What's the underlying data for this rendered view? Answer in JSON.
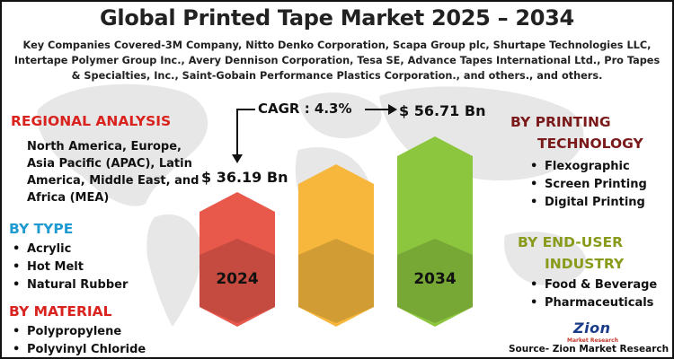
{
  "title": "Global Printed Tape Market 2025 – 2034",
  "companies_text": "Key Companies Covered-3M Company, Nitto Denko Corporation, Scapa Group plc, Shurtape Technologies LLC, Intertape Polymer Group Inc., Avery Dennison Corporation, Tesa SE, Advance Tapes International Ltd., Pro Tapes & Specialties, Inc., Saint-Gobain Performance Plastics Corporation., and others., and others.",
  "regional": {
    "heading": "REGIONAL ANALYSIS",
    "text": "North America, Europe, Asia Pacific (APAC), Latin America, Middle East, and Africa (MEA)"
  },
  "by_type": {
    "heading": "BY TYPE",
    "items": [
      "Acrylic",
      "Hot Melt",
      "Natural Rubber"
    ]
  },
  "by_material": {
    "heading": "BY MATERIAL",
    "items": [
      "Polypropylene",
      "Polyvinyl Chloride"
    ]
  },
  "by_printing": {
    "heading_line1": "BY PRINTING",
    "heading_line2": "TECHNOLOGY",
    "items": [
      "Flexographic",
      "Screen Printing",
      "Digital Printing"
    ]
  },
  "by_end_user": {
    "heading_line1": "BY END-USER",
    "heading_line2": "INDUSTRY",
    "items": [
      "Food & Beverage",
      "Pharmaceuticals"
    ]
  },
  "cagr_label": "CAGR : 4.3%",
  "value_2024": "$ 36.19 Bn",
  "value_2034": "$ 56.71 Bn",
  "logo": {
    "name": "Zion",
    "sub": "Market Research"
  },
  "source": "Source- Zion Market Research",
  "colors": {
    "bar_2024": "#e8584b",
    "bar_mid": "#f6b73c",
    "bar_2034": "#8cc63f",
    "heading_red": "#d9231f",
    "heading_blue": "#1f9bd1"
  },
  "chart_data": {
    "type": "bar",
    "categories": [
      "2024",
      "",
      "2034"
    ],
    "values": [
      36.19,
      null,
      56.71
    ],
    "unit": "USD Bn",
    "cagr_percent": 4.3
  }
}
